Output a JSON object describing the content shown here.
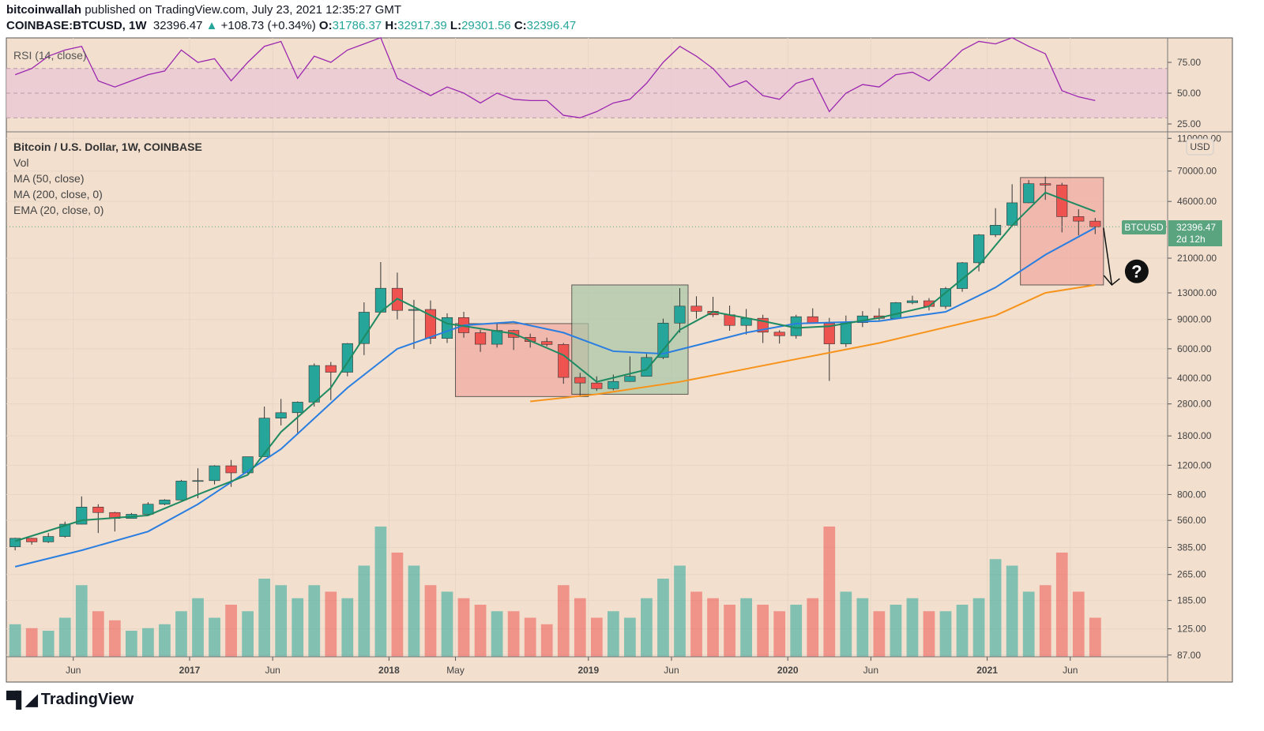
{
  "header": {
    "author": "bitcoinwallah",
    "published": "published on TradingView.com, July 23, 2021 12:35:27 GMT",
    "symbol": "COINBASE:BTCUSD, 1W",
    "last": "32396.47",
    "change": "+108.73 (+0.34%)",
    "o_label": "O:",
    "o": "31786.37",
    "h_label": "H:",
    "h": "32917.39",
    "l_label": "L:",
    "l": "29301.56",
    "c_label": "C:",
    "c": "32396.47"
  },
  "legend": {
    "rsi": "RSI (14, close)",
    "title": "Bitcoin / U.S. Dollar, 1W, COINBASE",
    "vol": "Vol",
    "ma50": "MA (50, close)",
    "ma200": "MA (200, close, 0)",
    "ema20": "EMA (20, close, 0)"
  },
  "price_label": {
    "symbol": "BTCUSD",
    "price": "32396.47",
    "countdown": "2d 12h",
    "currency": "USD"
  },
  "logo": "TradingView",
  "colors": {
    "background": "#f2dfce",
    "up": "#26a69a",
    "down": "#ef5350",
    "ema20": "#1e8a62",
    "ma50": "#2a7ee0",
    "ma200": "#f7931a",
    "rsi": "#9c27b0",
    "rsi_band": "#e8c8d4",
    "price_tag": "#5aa480"
  },
  "chart_data": {
    "type": "candlestick",
    "scale": "log",
    "grid": true,
    "months": [
      "2016-02",
      "2016-03",
      "2016-04",
      "2016-05",
      "2016-06",
      "2016-07",
      "2016-08",
      "2016-09",
      "2016-10",
      "2016-11",
      "2016-12",
      "2017-01",
      "2017-02",
      "2017-03",
      "2017-04",
      "2017-05",
      "2017-06",
      "2017-07",
      "2017-08",
      "2017-09",
      "2017-10",
      "2017-11",
      "2017-12",
      "2018-01",
      "2018-02",
      "2018-03",
      "2018-04",
      "2018-05",
      "2018-06",
      "2018-07",
      "2018-08",
      "2018-09",
      "2018-10",
      "2018-11",
      "2018-12",
      "2019-01",
      "2019-02",
      "2019-03",
      "2019-04",
      "2019-05",
      "2019-06",
      "2019-07",
      "2019-08",
      "2019-09",
      "2019-10",
      "2019-11",
      "2019-12",
      "2020-01",
      "2020-02",
      "2020-03",
      "2020-04",
      "2020-05",
      "2020-06",
      "2020-07",
      "2020-08",
      "2020-09",
      "2020-10",
      "2020-11",
      "2020-12",
      "2021-01",
      "2021-02",
      "2021-03",
      "2021-04",
      "2021-05",
      "2021-06",
      "2021-07"
    ],
    "close": [
      437,
      416,
      448,
      531,
      673,
      624,
      575,
      609,
      700,
      742,
      964,
      970,
      1190,
      1080,
      1350,
      2300,
      2480,
      2870,
      4760,
      4340,
      6450,
      9950,
      13850,
      10200,
      10330,
      6930,
      9240,
      7490,
      6390,
      7730,
      7030,
      6630,
      6370,
      4040,
      3740,
      3460,
      3820,
      4100,
      5320,
      8560,
      10820,
      10080,
      9600,
      8290,
      9150,
      7550,
      7190,
      9350,
      8540,
      6420,
      8620,
      9450,
      9140,
      11350,
      11650,
      10780,
      13800,
      19700,
      28990,
      33110,
      45140,
      58790,
      57720,
      37300,
      35040,
      32396
    ],
    "high": [
      440,
      440,
      470,
      550,
      780,
      700,
      630,
      620,
      720,
      750,
      980,
      1150,
      1200,
      1290,
      1350,
      2700,
      3000,
      2900,
      4900,
      5000,
      6500,
      11400,
      19891,
      17200,
      11800,
      11700,
      9800,
      10000,
      7800,
      8500,
      7800,
      7400,
      7000,
      6500,
      4300,
      4100,
      4200,
      5400,
      5600,
      9100,
      13880,
      12400,
      12300,
      10900,
      10400,
      9600,
      7750,
      9600,
      10500,
      9200,
      9500,
      10100,
      10500,
      11450,
      12490,
      12100,
      14100,
      19900,
      29300,
      41900,
      58350,
      61800,
      64895,
      59500,
      41300,
      36600
    ],
    "low": [
      370,
      400,
      410,
      440,
      530,
      470,
      480,
      590,
      600,
      690,
      740,
      760,
      920,
      890,
      1070,
      1350,
      2080,
      1840,
      2700,
      2950,
      4100,
      5500,
      10700,
      9000,
      6000,
      6400,
      6500,
      7000,
      5750,
      6100,
      5900,
      6100,
      6200,
      3700,
      3122,
      3350,
      3380,
      3800,
      4100,
      5200,
      7500,
      9100,
      9300,
      7700,
      7300,
      6500,
      6450,
      6900,
      8500,
      3850,
      6150,
      8100,
      8900,
      9000,
      11100,
      10200,
      10400,
      13200,
      17500,
      28100,
      32300,
      44900,
      47000,
      30000,
      28800,
      29300
    ],
    "volume": [
      0.25,
      0.22,
      0.2,
      0.3,
      0.55,
      0.35,
      0.28,
      0.2,
      0.22,
      0.25,
      0.35,
      0.45,
      0.3,
      0.4,
      0.35,
      0.6,
      0.55,
      0.45,
      0.55,
      0.5,
      0.45,
      0.7,
      1.0,
      0.8,
      0.7,
      0.55,
      0.5,
      0.45,
      0.4,
      0.35,
      0.35,
      0.3,
      0.25,
      0.55,
      0.45,
      0.3,
      0.35,
      0.3,
      0.45,
      0.6,
      0.7,
      0.5,
      0.45,
      0.4,
      0.45,
      0.4,
      0.35,
      0.4,
      0.45,
      1.0,
      0.5,
      0.45,
      0.35,
      0.4,
      0.45,
      0.35,
      0.35,
      0.4,
      0.45,
      0.75,
      0.7,
      0.5,
      0.55,
      0.8,
      0.5,
      0.3
    ],
    "ema20": [
      [
        "2016-02",
        420
      ],
      [
        "2016-06",
        560
      ],
      [
        "2016-10",
        600
      ],
      [
        "2017-01",
        800
      ],
      [
        "2017-04",
        1050
      ],
      [
        "2017-06",
        1900
      ],
      [
        "2017-09",
        3500
      ],
      [
        "2017-12",
        10000
      ],
      [
        "2018-01",
        12000
      ],
      [
        "2018-04",
        8500
      ],
      [
        "2018-08",
        7400
      ],
      [
        "2018-11",
        5500
      ],
      [
        "2019-01",
        3800
      ],
      [
        "2019-04",
        4500
      ],
      [
        "2019-06",
        7800
      ],
      [
        "2019-08",
        10000
      ],
      [
        "2019-11",
        8800
      ],
      [
        "2020-01",
        8000
      ],
      [
        "2020-03",
        8200
      ],
      [
        "2020-06",
        9200
      ],
      [
        "2020-09",
        10800
      ],
      [
        "2020-12",
        19000
      ],
      [
        "2021-02",
        33000
      ],
      [
        "2021-04",
        52000
      ],
      [
        "2021-07",
        40000
      ]
    ],
    "ma50": [
      [
        "2016-02",
        295
      ],
      [
        "2016-06",
        370
      ],
      [
        "2016-10",
        480
      ],
      [
        "2017-01",
        700
      ],
      [
        "2017-06",
        1500
      ],
      [
        "2017-10",
        3500
      ],
      [
        "2018-01",
        6000
      ],
      [
        "2018-05",
        8300
      ],
      [
        "2018-08",
        8700
      ],
      [
        "2018-11",
        7500
      ],
      [
        "2019-02",
        5800
      ],
      [
        "2019-05",
        5600
      ],
      [
        "2019-10",
        7500
      ],
      [
        "2020-01",
        8500
      ],
      [
        "2020-06",
        8800
      ],
      [
        "2020-10",
        10000
      ],
      [
        "2021-01",
        14000
      ],
      [
        "2021-04",
        22000
      ],
      [
        "2021-07",
        32000
      ]
    ],
    "ma200": [
      [
        "2018-09",
        2900
      ],
      [
        "2019-01",
        3200
      ],
      [
        "2019-06",
        3800
      ],
      [
        "2020-01",
        5200
      ],
      [
        "2020-06",
        6500
      ],
      [
        "2021-01",
        9500
      ],
      [
        "2021-04",
        13000
      ],
      [
        "2021-07",
        14500
      ]
    ],
    "rsi": [
      65,
      70,
      80,
      85,
      88,
      60,
      55,
      60,
      65,
      68,
      85,
      75,
      78,
      60,
      75,
      88,
      92,
      62,
      80,
      75,
      85,
      90,
      95,
      62,
      55,
      48,
      55,
      50,
      42,
      50,
      45,
      44,
      44,
      32,
      30,
      35,
      42,
      45,
      58,
      75,
      88,
      80,
      70,
      55,
      60,
      48,
      45,
      58,
      62,
      35,
      50,
      57,
      55,
      65,
      67,
      60,
      72,
      85,
      92,
      90,
      95,
      88,
      82,
      52,
      47,
      44
    ],
    "rsi_levels": [
      30,
      50,
      70
    ],
    "y_ticks": [
      "110000.00",
      "70000.00",
      "46000.00",
      "21000.00",
      "13000.00",
      "9000.00",
      "6000.00",
      "4000.00",
      "2800.00",
      "1800.00",
      "1200.00",
      "800.00",
      "560.00",
      "385.00",
      "265.00",
      "185.00",
      "125.00",
      "87.00"
    ],
    "rsi_ticks": [
      "75.00",
      "50.00",
      "25.00"
    ],
    "x_ticks": [
      [
        "2016-06",
        "Jun"
      ],
      [
        "2017-01",
        "2017"
      ],
      [
        "2017-06",
        "Jun"
      ],
      [
        "2018-01",
        "2018"
      ],
      [
        "2018-05",
        "May"
      ],
      [
        "2019-01",
        "2019"
      ],
      [
        "2019-06",
        "Jun"
      ],
      [
        "2020-01",
        "2020"
      ],
      [
        "2020-06",
        "Jun"
      ],
      [
        "2021-01",
        "2021"
      ],
      [
        "2021-06",
        "Jun"
      ]
    ],
    "annotations": [
      {
        "type": "box",
        "color": "red",
        "from": "2018-05",
        "to": "2018-12",
        "top": 8500,
        "bottom": 3100
      },
      {
        "type": "box",
        "color": "green",
        "from": "2018-12",
        "to": "2019-06",
        "top": 14500,
        "bottom": 3200
      },
      {
        "type": "box",
        "color": "red",
        "from": "2021-03",
        "to": "2021-07",
        "top": 64000,
        "bottom": 14500
      },
      {
        "type": "arrow",
        "from": [
          "2021-07",
          32000
        ],
        "to": [
          "2021-08",
          14500
        ]
      },
      {
        "type": "icon",
        "name": "question-icon",
        "at": [
          "2021-09",
          17500
        ]
      }
    ]
  }
}
